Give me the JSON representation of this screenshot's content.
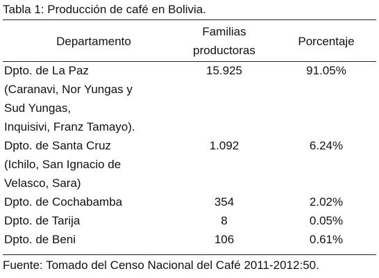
{
  "title": "Tabla 1: Producción de café en Bolivia.",
  "table": {
    "headers": [
      [
        "Departamento"
      ],
      [
        "Familias",
        "productoras"
      ],
      [
        "Porcentaje"
      ]
    ],
    "rows": [
      [
        [
          "Dpto. de La Paz",
          "(Caranavi, Nor Yungas y",
          "Sud Yungas,",
          "Inquisivi, Franz Tamayo)."
        ],
        "15.925",
        "91.05%"
      ],
      [
        [
          "Dpto. de Santa Cruz",
          "(Ichilo, San Ignacio de",
          "Velasco, Sara)"
        ],
        "1.092",
        "6.24%"
      ],
      [
        [
          "Dpto.  de Cochabamba"
        ],
        "354",
        "2.02%"
      ],
      [
        [
          "Dpto. de Tarija"
        ],
        "8",
        "0.05%"
      ],
      [
        [
          "Dpto. de Beni"
        ],
        "106",
        "0.61%"
      ]
    ]
  },
  "footer": "Fuente: Tomado del Censo Nacional del Café 2011-2012:50."
}
